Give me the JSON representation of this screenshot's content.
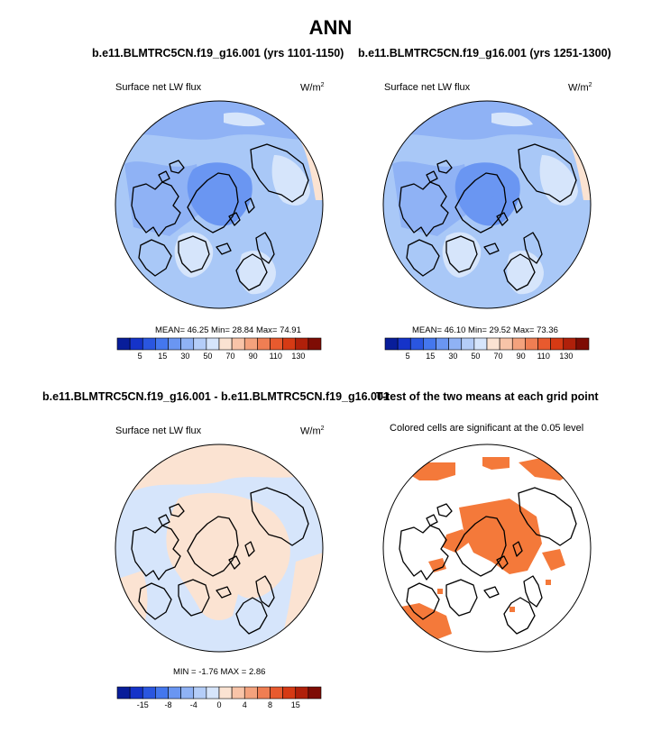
{
  "season_title": "ANN",
  "panels": [
    {
      "title": "b.e11.BLMTRC5CN.f19_g16.001 (yrs 1101-1150)",
      "variable": "Surface net LW flux",
      "units": "W/m",
      "units_sup": "2",
      "stats": "MEAN= 46.25  Min= 28.84  Max= 74.91",
      "colorbar_ticks": [
        "5",
        "15",
        "30",
        "50",
        "70",
        "90",
        "110",
        "130"
      ]
    },
    {
      "title": "b.e11.BLMTRC5CN.f19_g16.001 (yrs 1251-1300)",
      "variable": "Surface net LW flux",
      "units": "W/m",
      "units_sup": "2",
      "stats": "MEAN= 46.10  Min= 29.52  Max= 73.36",
      "colorbar_ticks": [
        "5",
        "15",
        "30",
        "50",
        "70",
        "90",
        "110",
        "130"
      ]
    },
    {
      "title": "b.e11.BLMTRC5CN.f19_g16.001 - b.e11.BLMTRC5CN.f19_g16.001",
      "variable": "Surface net LW flux",
      "units": "W/m",
      "units_sup": "2",
      "stats": "MIN =  -1.76 MAX =   2.86",
      "colorbar_ticks": [
        "-15",
        "-8",
        "-4",
        "0",
        "4",
        "8",
        "15"
      ]
    },
    {
      "title": "T-test of the two means at each grid point",
      "subtitle": "Colored cells are significant at the 0.05 level"
    }
  ],
  "colors": {
    "abs_scale": [
      "#081d9a",
      "#1533c9",
      "#2a56e0",
      "#4477ee",
      "#6a96f2",
      "#8fb2f5",
      "#b4cdf8",
      "#d6e5fb",
      "#fbe3d2",
      "#f8c4a8",
      "#f4a27d",
      "#ef7e53",
      "#e85a2e",
      "#d63a14",
      "#b0200a",
      "#7e0c04"
    ],
    "diff_scale": [
      "#081d9a",
      "#1533c9",
      "#2a56e0",
      "#4477ee",
      "#6a96f2",
      "#8fb2f5",
      "#b4cdf8",
      "#d6e5fb",
      "#fbe3d2",
      "#f8c4a8",
      "#f4a27d",
      "#ef7e53",
      "#e85a2e",
      "#d63a14",
      "#b0200a",
      "#7e0c04"
    ],
    "mean_ocean": "#a9c8f7",
    "mean_mid": "#8fb2f5",
    "mean_arctic": "#6a96f2",
    "mean_light": "#d6e5fb",
    "mean_warm": "#fbe3d2",
    "diff_pos": "#fbe3d2",
    "diff_neg": "#d6e5fb",
    "significant": "#f4793a"
  }
}
